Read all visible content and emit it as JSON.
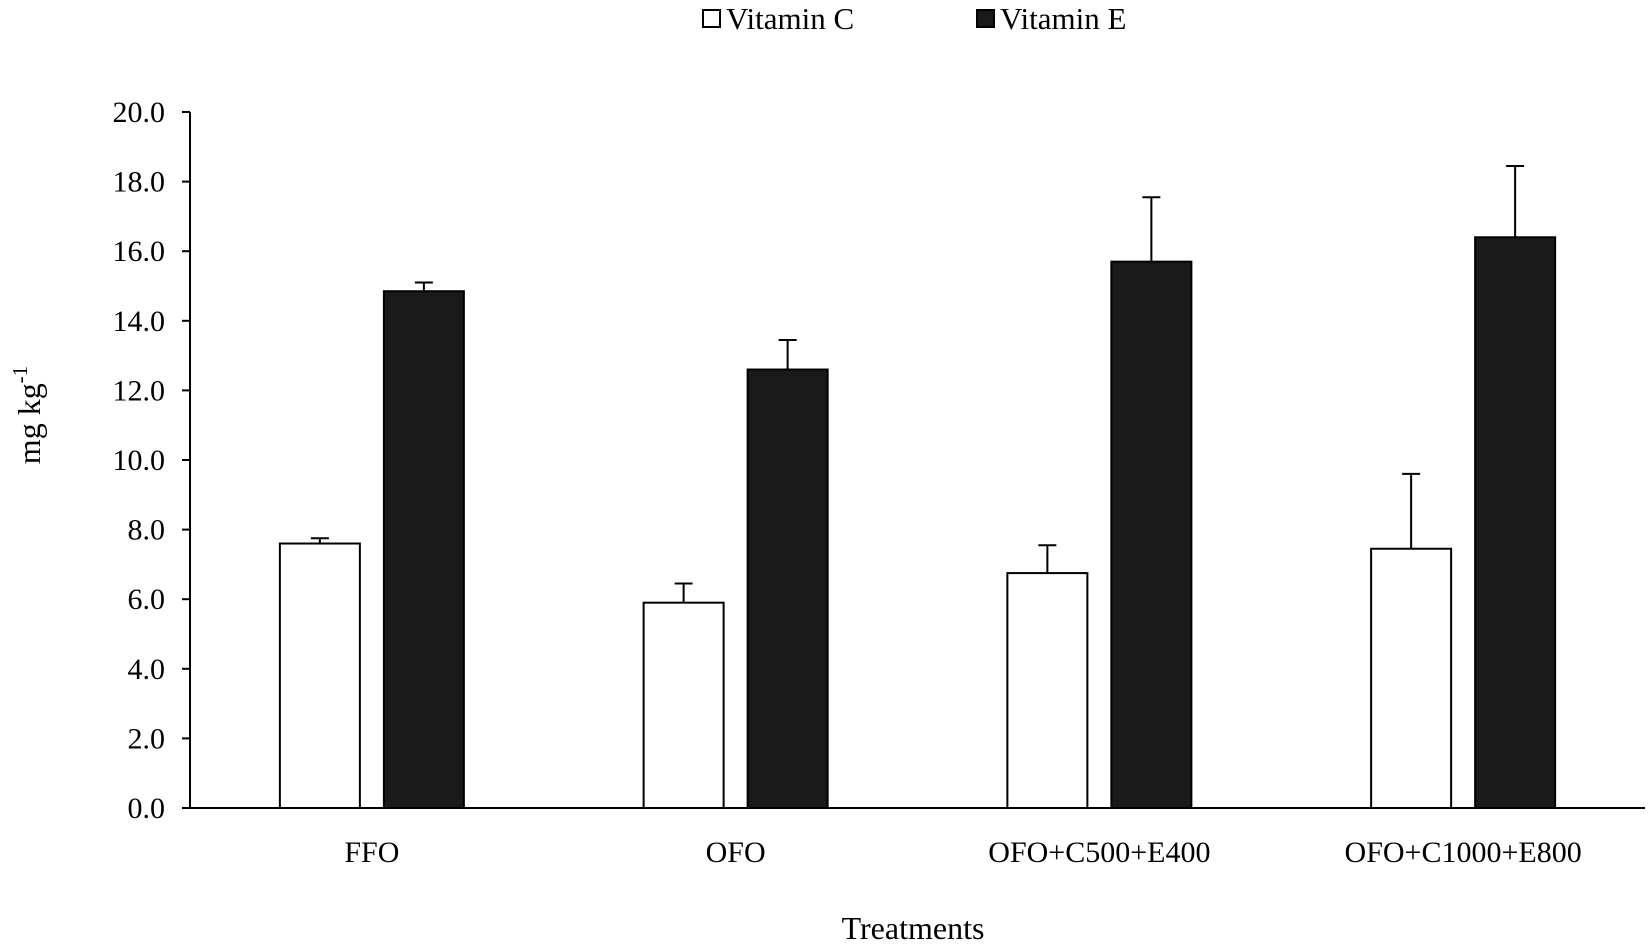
{
  "chart_data": {
    "type": "bar",
    "title": "",
    "xlabel": "Treatments",
    "ylabel": "mg kg",
    "ylabel_superscript": "-1",
    "ylim": [
      0,
      20
    ],
    "ytick_step": 2,
    "ytick_labels": [
      "0.0",
      "2.0",
      "4.0",
      "6.0",
      "8.0",
      "10.0",
      "12.0",
      "14.0",
      "16.0",
      "18.0",
      "20.0"
    ],
    "categories": [
      "FFO",
      "OFO",
      "OFO+C500+E400",
      "OFO+C1000+E800"
    ],
    "series": [
      {
        "name": "Vitamin C",
        "fill": "#ffffff",
        "values": [
          7.6,
          5.9,
          6.75,
          7.45
        ],
        "errors": [
          0.15,
          0.55,
          0.8,
          2.15
        ]
      },
      {
        "name": "Vitamin E",
        "fill": "#1a1a1a",
        "values": [
          14.85,
          12.6,
          15.7,
          16.4
        ],
        "errors": [
          0.25,
          0.85,
          1.85,
          2.05
        ]
      }
    ],
    "legend": {
      "position": "top-center"
    },
    "grid": false
  }
}
